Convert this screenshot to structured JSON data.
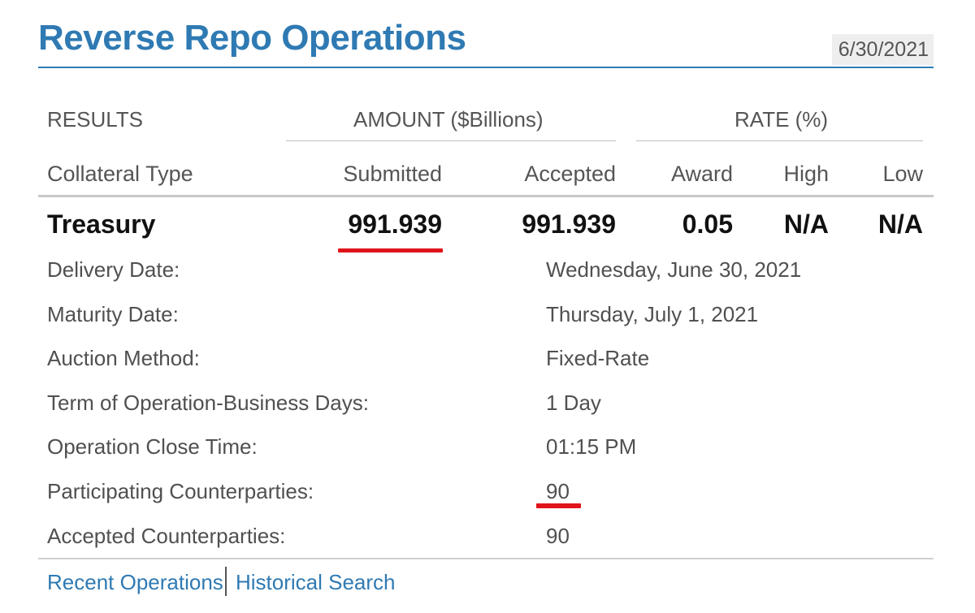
{
  "header": {
    "title": "Reverse Repo Operations",
    "date": "6/30/2021"
  },
  "table": {
    "results_label": "RESULTS",
    "amount_group": "AMOUNT ($Billions)",
    "rate_group": "RATE (%)",
    "columns": {
      "collateral_type": "Collateral Type",
      "submitted": "Submitted",
      "accepted": "Accepted",
      "award": "Award",
      "high": "High",
      "low": "Low"
    },
    "row": {
      "collateral_type": "Treasury",
      "submitted": "991.939",
      "accepted": "991.939",
      "award": "0.05",
      "high": "N/A",
      "low": "N/A"
    }
  },
  "details": [
    {
      "label": "Delivery Date:",
      "value": "Wednesday, June 30, 2021"
    },
    {
      "label": "Maturity Date:",
      "value": "Thursday, July 1, 2021"
    },
    {
      "label": "Auction Method:",
      "value": "Fixed-Rate"
    },
    {
      "label": "Term of Operation-Business Days:",
      "value": "1 Day"
    },
    {
      "label": "Operation Close Time:",
      "value": "01:15 PM"
    },
    {
      "label": "Participating Counterparties:",
      "value": "90"
    },
    {
      "label": "Accepted Counterparties:",
      "value": "90"
    }
  ],
  "footer": {
    "recent_operations": "Recent Operations",
    "historical_search": "Historical Search"
  },
  "colors": {
    "title_blue": "#2f7ab3",
    "highlight_red": "#e0141a"
  }
}
